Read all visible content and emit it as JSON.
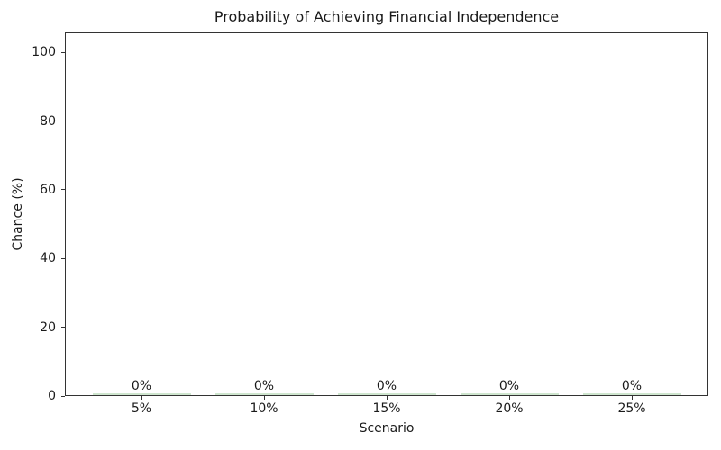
{
  "chart_data": {
    "type": "bar",
    "title": "Probability of Achieving Financial Independence",
    "xlabel": "Scenario",
    "ylabel": "Chance (%)",
    "categories": [
      "5%",
      "10%",
      "15%",
      "20%",
      "25%"
    ],
    "values": [
      0,
      0,
      0,
      0,
      0
    ],
    "bar_labels": [
      "0%",
      "0%",
      "0%",
      "0%",
      "0%"
    ],
    "yticks": [
      0,
      20,
      40,
      60,
      80,
      100
    ],
    "ylim": [
      0,
      105.8
    ],
    "bar_color": "#90ee90",
    "bar_rendered_edge_color": "#cfe6cf",
    "grid": false,
    "legend": null,
    "background_color": "#ffffff",
    "text_color": "#1a1a1a"
  }
}
